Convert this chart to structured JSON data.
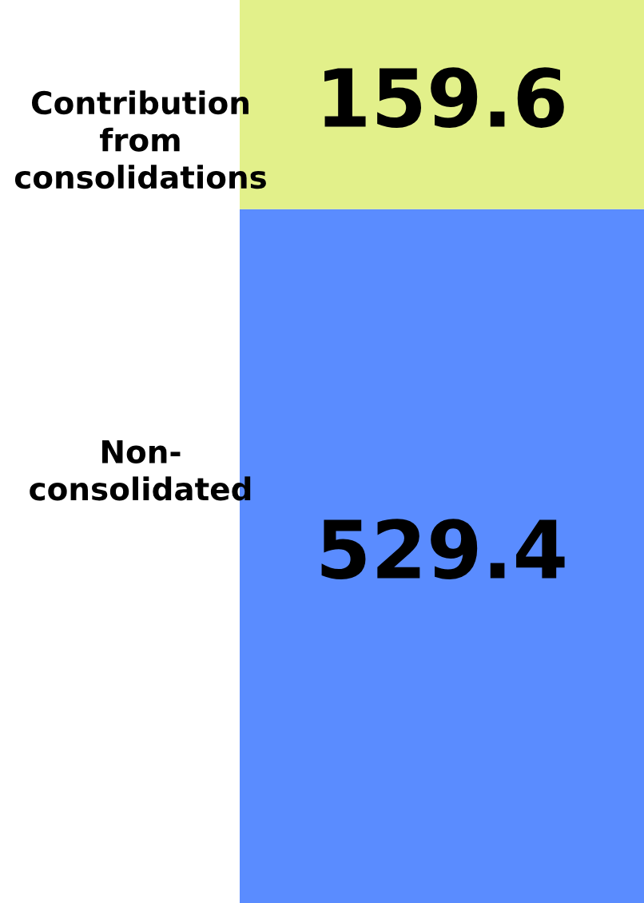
{
  "chart_data": {
    "type": "bar",
    "stacked": true,
    "categories": [
      null
    ],
    "data_labels": true,
    "tick_labels": false,
    "series": [
      {
        "name": "Non-\nconsolidated",
        "color": "#5a8cff",
        "values": [
          529.4
        ]
      },
      {
        "name": "Contribution\nfrom\nconsolidations",
        "color": "#e2f08a",
        "values": [
          159.6
        ]
      }
    ]
  }
}
